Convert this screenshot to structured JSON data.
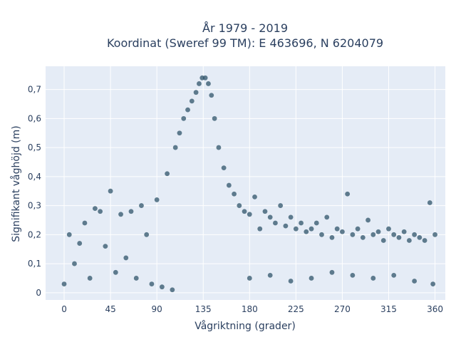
{
  "chart_data": {
    "type": "scatter",
    "title": "År 1979 - 2019",
    "subtitle": "Koordinat (Sweref 99 TM): E 463696, N 6204079",
    "xlabel": "Vågriktning (grader)",
    "ylabel": "Signifikant våghöjd (m)",
    "xlim": [
      -18,
      370
    ],
    "ylim": [
      -0.025,
      0.78
    ],
    "x_ticks": [
      0,
      45,
      90,
      135,
      180,
      225,
      270,
      315,
      360
    ],
    "x_tick_labels": [
      "0",
      "45",
      "90",
      "135",
      "180",
      "225",
      "270",
      "315",
      "360"
    ],
    "y_ticks": [
      0,
      0.1,
      0.2,
      0.3,
      0.4,
      0.5,
      0.6,
      0.7
    ],
    "y_tick_labels": [
      "0",
      "0,1",
      "0,2",
      "0,3",
      "0,4",
      "0,5",
      "0,6",
      "0,7"
    ],
    "grid": true,
    "legend": false,
    "colors": {
      "marker": "#2f5469",
      "plot_bg": "#e5ecf6",
      "grid": "#ffffff",
      "text": "#2a3f5f"
    },
    "series": [
      {
        "points": [
          [
            0,
            0.03
          ],
          [
            5,
            0.2
          ],
          [
            10,
            0.1
          ],
          [
            15,
            0.17
          ],
          [
            20,
            0.24
          ],
          [
            25,
            0.05
          ],
          [
            30,
            0.29
          ],
          [
            35,
            0.28
          ],
          [
            40,
            0.16
          ],
          [
            45,
            0.35
          ],
          [
            50,
            0.07
          ],
          [
            55,
            0.27
          ],
          [
            60,
            0.12
          ],
          [
            65,
            0.28
          ],
          [
            70,
            0.05
          ],
          [
            75,
            0.3
          ],
          [
            80,
            0.2
          ],
          [
            85,
            0.03
          ],
          [
            90,
            0.32
          ],
          [
            95,
            0.02
          ],
          [
            100,
            0.41
          ],
          [
            105,
            0.01
          ],
          [
            108,
            0.5
          ],
          [
            112,
            0.55
          ],
          [
            116,
            0.6
          ],
          [
            120,
            0.63
          ],
          [
            124,
            0.66
          ],
          [
            128,
            0.69
          ],
          [
            131,
            0.72
          ],
          [
            134,
            0.74
          ],
          [
            137,
            0.74
          ],
          [
            140,
            0.72
          ],
          [
            143,
            0.68
          ],
          [
            146,
            0.6
          ],
          [
            150,
            0.5
          ],
          [
            155,
            0.43
          ],
          [
            160,
            0.37
          ],
          [
            165,
            0.34
          ],
          [
            170,
            0.3
          ],
          [
            175,
            0.28
          ],
          [
            180,
            0.27
          ],
          [
            185,
            0.33
          ],
          [
            190,
            0.22
          ],
          [
            195,
            0.28
          ],
          [
            200,
            0.26
          ],
          [
            205,
            0.24
          ],
          [
            210,
            0.3
          ],
          [
            215,
            0.23
          ],
          [
            220,
            0.26
          ],
          [
            225,
            0.22
          ],
          [
            230,
            0.24
          ],
          [
            235,
            0.21
          ],
          [
            240,
            0.22
          ],
          [
            245,
            0.24
          ],
          [
            250,
            0.2
          ],
          [
            255,
            0.26
          ],
          [
            260,
            0.19
          ],
          [
            265,
            0.22
          ],
          [
            270,
            0.21
          ],
          [
            275,
            0.34
          ],
          [
            280,
            0.2
          ],
          [
            285,
            0.22
          ],
          [
            290,
            0.19
          ],
          [
            295,
            0.25
          ],
          [
            300,
            0.2
          ],
          [
            305,
            0.21
          ],
          [
            310,
            0.18
          ],
          [
            315,
            0.22
          ],
          [
            320,
            0.2
          ],
          [
            325,
            0.19
          ],
          [
            330,
            0.21
          ],
          [
            335,
            0.18
          ],
          [
            340,
            0.2
          ],
          [
            345,
            0.19
          ],
          [
            350,
            0.18
          ],
          [
            355,
            0.31
          ],
          [
            360,
            0.2
          ],
          [
            180,
            0.05
          ],
          [
            200,
            0.06
          ],
          [
            220,
            0.04
          ],
          [
            240,
            0.05
          ],
          [
            260,
            0.07
          ],
          [
            280,
            0.06
          ],
          [
            300,
            0.05
          ],
          [
            320,
            0.06
          ],
          [
            340,
            0.04
          ],
          [
            358,
            0.03
          ]
        ]
      }
    ]
  }
}
